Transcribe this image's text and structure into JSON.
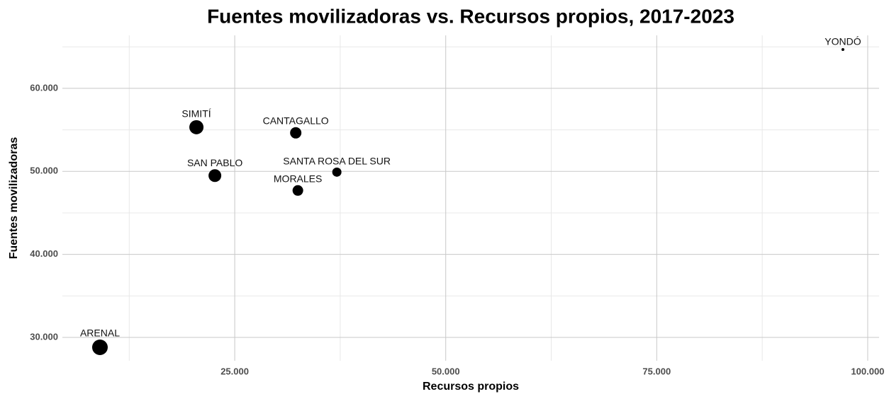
{
  "chart_data": {
    "type": "scatter",
    "title": "Fuentes movilizadoras vs. Recursos propios, 2017-2023",
    "x_label": "Recursos propios",
    "y_label": "Fuentes movilizadoras",
    "labels": [
      "ARENAL",
      "SIMITÍ",
      "SAN PABLO",
      "CANTAGALLO",
      "MORALES",
      "SANTA ROSA DEL SUR",
      "YONDÓ"
    ],
    "x": [
      9030,
      20460,
      22650,
      32230,
      32480,
      37100,
      97060
    ],
    "y": [
      28810,
      55320,
      49490,
      54640,
      47700,
      49910,
      64680
    ],
    "size": [
      11,
      10,
      9,
      8,
      7.5,
      6.5,
      2
    ],
    "color": "#000000",
    "xlim": [
      4580,
      101350
    ],
    "ylim": [
      27190,
      66380
    ],
    "xticks": [
      {
        "value": 25000,
        "label": "25.000"
      },
      {
        "value": 50000,
        "label": "50.000"
      },
      {
        "value": 75000,
        "label": "75.000"
      },
      {
        "value": 100000,
        "label": "100.000"
      }
    ],
    "yticks": [
      {
        "value": 30000,
        "label": "30.000"
      },
      {
        "value": 40000,
        "label": "40.000"
      },
      {
        "value": 50000,
        "label": "50.000"
      },
      {
        "value": 60000,
        "label": "60.000"
      }
    ],
    "xminor": [
      12500,
      37500,
      62500,
      87500
    ],
    "yminor": [
      35000,
      45000,
      55000,
      65000
    ],
    "grid": true
  }
}
